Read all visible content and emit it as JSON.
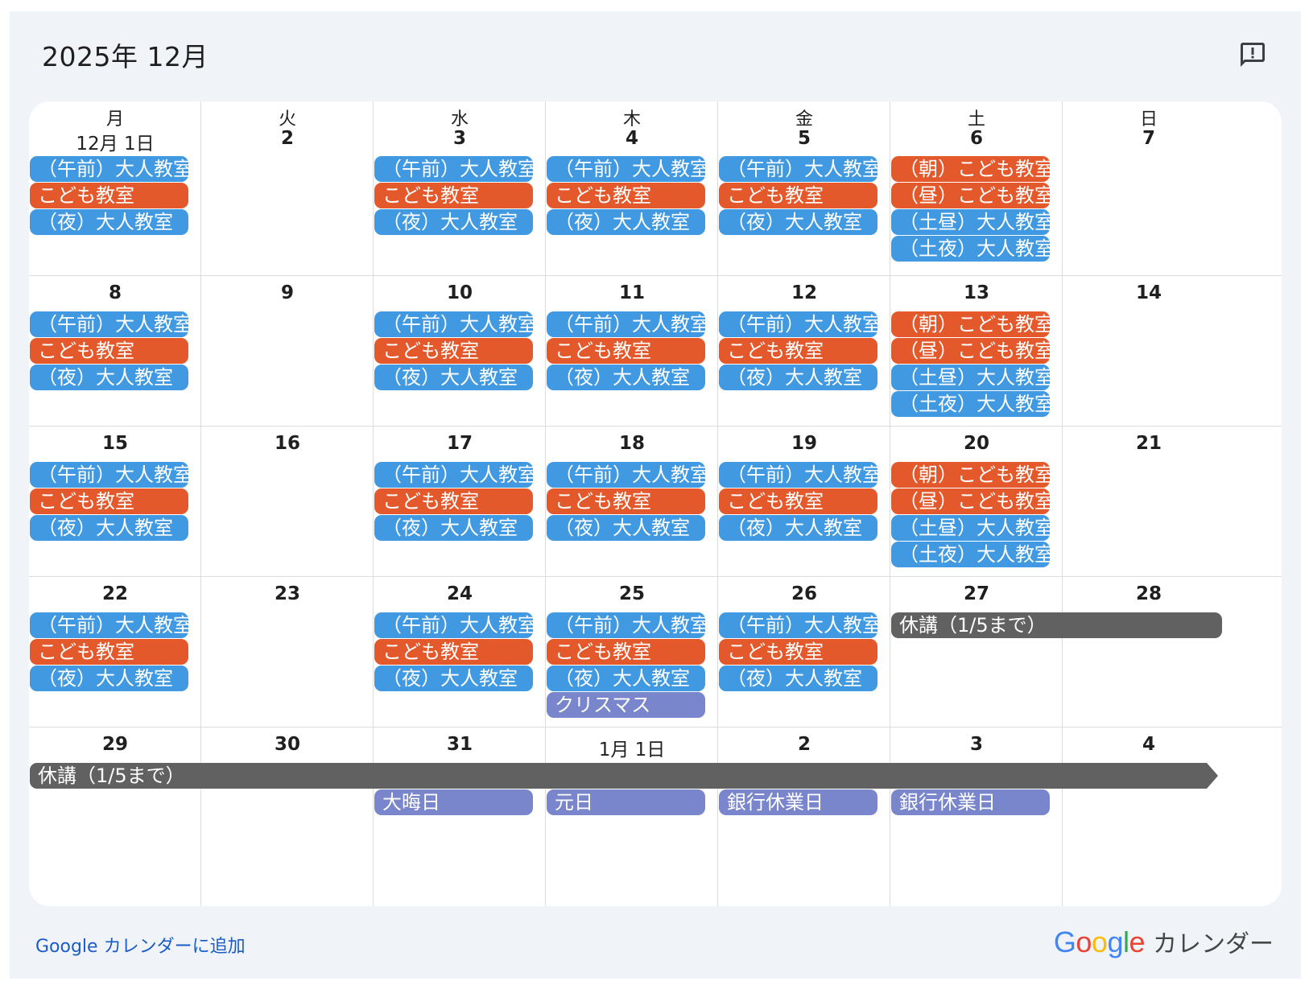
{
  "header": {
    "title": "2025年 12月"
  },
  "weekdays": [
    "月",
    "火",
    "水",
    "木",
    "金",
    "土",
    "日"
  ],
  "colors": {
    "blue": "#4199e1",
    "orange": "#e3592b",
    "purple": "#7986cb",
    "gray": "#616161",
    "link": "#1a5bc7"
  },
  "weeks": [
    {
      "days": [
        "12月 1日",
        "2",
        "3",
        "4",
        "5",
        "6",
        "7"
      ],
      "events": [
        {
          "col": 0,
          "slot": 0,
          "label": "（午前）大人教室",
          "color": "blue"
        },
        {
          "col": 0,
          "slot": 1,
          "label": "こども教室",
          "color": "orange"
        },
        {
          "col": 0,
          "slot": 2,
          "label": "（夜）大人教室",
          "color": "blue"
        },
        {
          "col": 2,
          "slot": 0,
          "label": "（午前）大人教室",
          "color": "blue"
        },
        {
          "col": 2,
          "slot": 1,
          "label": "こども教室",
          "color": "orange"
        },
        {
          "col": 2,
          "slot": 2,
          "label": "（夜）大人教室",
          "color": "blue"
        },
        {
          "col": 3,
          "slot": 0,
          "label": "（午前）大人教室",
          "color": "blue"
        },
        {
          "col": 3,
          "slot": 1,
          "label": "こども教室",
          "color": "orange"
        },
        {
          "col": 3,
          "slot": 2,
          "label": "（夜）大人教室",
          "color": "blue"
        },
        {
          "col": 4,
          "slot": 0,
          "label": "（午前）大人教室",
          "color": "blue"
        },
        {
          "col": 4,
          "slot": 1,
          "label": "こども教室",
          "color": "orange"
        },
        {
          "col": 4,
          "slot": 2,
          "label": "（夜）大人教室",
          "color": "blue"
        },
        {
          "col": 5,
          "slot": 0,
          "label": "（朝）こども教室",
          "color": "orange"
        },
        {
          "col": 5,
          "slot": 1,
          "label": "（昼）こども教室",
          "color": "orange"
        },
        {
          "col": 5,
          "slot": 2,
          "label": "（土昼）大人教室",
          "color": "blue"
        },
        {
          "col": 5,
          "slot": 3,
          "label": "（土夜）大人教室",
          "color": "blue"
        }
      ]
    },
    {
      "days": [
        "8",
        "9",
        "10",
        "11",
        "12",
        "13",
        "14"
      ],
      "events": [
        {
          "col": 0,
          "slot": 0,
          "label": "（午前）大人教室",
          "color": "blue"
        },
        {
          "col": 0,
          "slot": 1,
          "label": "こども教室",
          "color": "orange"
        },
        {
          "col": 0,
          "slot": 2,
          "label": "（夜）大人教室",
          "color": "blue"
        },
        {
          "col": 2,
          "slot": 0,
          "label": "（午前）大人教室",
          "color": "blue"
        },
        {
          "col": 2,
          "slot": 1,
          "label": "こども教室",
          "color": "orange"
        },
        {
          "col": 2,
          "slot": 2,
          "label": "（夜）大人教室",
          "color": "blue"
        },
        {
          "col": 3,
          "slot": 0,
          "label": "（午前）大人教室",
          "color": "blue"
        },
        {
          "col": 3,
          "slot": 1,
          "label": "こども教室",
          "color": "orange"
        },
        {
          "col": 3,
          "slot": 2,
          "label": "（夜）大人教室",
          "color": "blue"
        },
        {
          "col": 4,
          "slot": 0,
          "label": "（午前）大人教室",
          "color": "blue"
        },
        {
          "col": 4,
          "slot": 1,
          "label": "こども教室",
          "color": "orange"
        },
        {
          "col": 4,
          "slot": 2,
          "label": "（夜）大人教室",
          "color": "blue"
        },
        {
          "col": 5,
          "slot": 0,
          "label": "（朝）こども教室",
          "color": "orange"
        },
        {
          "col": 5,
          "slot": 1,
          "label": "（昼）こども教室",
          "color": "orange"
        },
        {
          "col": 5,
          "slot": 2,
          "label": "（土昼）大人教室",
          "color": "blue"
        },
        {
          "col": 5,
          "slot": 3,
          "label": "（土夜）大人教室",
          "color": "blue"
        }
      ]
    },
    {
      "days": [
        "15",
        "16",
        "17",
        "18",
        "19",
        "20",
        "21"
      ],
      "events": [
        {
          "col": 0,
          "slot": 0,
          "label": "（午前）大人教室",
          "color": "blue"
        },
        {
          "col": 0,
          "slot": 1,
          "label": "こども教室",
          "color": "orange"
        },
        {
          "col": 0,
          "slot": 2,
          "label": "（夜）大人教室",
          "color": "blue"
        },
        {
          "col": 2,
          "slot": 0,
          "label": "（午前）大人教室",
          "color": "blue"
        },
        {
          "col": 2,
          "slot": 1,
          "label": "こども教室",
          "color": "orange"
        },
        {
          "col": 2,
          "slot": 2,
          "label": "（夜）大人教室",
          "color": "blue"
        },
        {
          "col": 3,
          "slot": 0,
          "label": "（午前）大人教室",
          "color": "blue"
        },
        {
          "col": 3,
          "slot": 1,
          "label": "こども教室",
          "color": "orange"
        },
        {
          "col": 3,
          "slot": 2,
          "label": "（夜）大人教室",
          "color": "blue"
        },
        {
          "col": 4,
          "slot": 0,
          "label": "（午前）大人教室",
          "color": "blue"
        },
        {
          "col": 4,
          "slot": 1,
          "label": "こども教室",
          "color": "orange"
        },
        {
          "col": 4,
          "slot": 2,
          "label": "（夜）大人教室",
          "color": "blue"
        },
        {
          "col": 5,
          "slot": 0,
          "label": "（朝）こども教室",
          "color": "orange"
        },
        {
          "col": 5,
          "slot": 1,
          "label": "（昼）こども教室",
          "color": "orange"
        },
        {
          "col": 5,
          "slot": 2,
          "label": "（土昼）大人教室",
          "color": "blue"
        },
        {
          "col": 5,
          "slot": 3,
          "label": "（土夜）大人教室",
          "color": "blue"
        }
      ]
    },
    {
      "days": [
        "22",
        "23",
        "24",
        "25",
        "26",
        "27",
        "28"
      ],
      "events": [
        {
          "col": 0,
          "slot": 0,
          "label": "（午前）大人教室",
          "color": "blue"
        },
        {
          "col": 0,
          "slot": 1,
          "label": "こども教室",
          "color": "orange"
        },
        {
          "col": 0,
          "slot": 2,
          "label": "（夜）大人教室",
          "color": "blue"
        },
        {
          "col": 2,
          "slot": 0,
          "label": "（午前）大人教室",
          "color": "blue"
        },
        {
          "col": 2,
          "slot": 1,
          "label": "こども教室",
          "color": "orange"
        },
        {
          "col": 2,
          "slot": 2,
          "label": "（夜）大人教室",
          "color": "blue"
        },
        {
          "col": 3,
          "slot": 0,
          "label": "（午前）大人教室",
          "color": "blue"
        },
        {
          "col": 3,
          "slot": 1,
          "label": "こども教室",
          "color": "orange"
        },
        {
          "col": 3,
          "slot": 2,
          "label": "（夜）大人教室",
          "color": "blue"
        },
        {
          "col": 3,
          "slot": 3,
          "label": "クリスマス",
          "color": "purple"
        },
        {
          "col": 4,
          "slot": 0,
          "label": "（午前）大人教室",
          "color": "blue"
        },
        {
          "col": 4,
          "slot": 1,
          "label": "こども教室",
          "color": "orange"
        },
        {
          "col": 4,
          "slot": 2,
          "label": "（夜）大人教室",
          "color": "blue"
        },
        {
          "col": 5,
          "slot": 0,
          "span": 2,
          "label": "休講（1/5まで）",
          "color": "gray"
        }
      ]
    },
    {
      "days": [
        "29",
        "30",
        "31",
        "1月 1日",
        "2",
        "3",
        "4"
      ],
      "events": [
        {
          "col": 0,
          "slot": 0,
          "span": 7,
          "label": "休講（1/5まで）",
          "color": "gray",
          "continues": true
        },
        {
          "col": 2,
          "slot": 1,
          "label": "大晦日",
          "color": "purple"
        },
        {
          "col": 3,
          "slot": 1,
          "label": "元日",
          "color": "purple"
        },
        {
          "col": 4,
          "slot": 1,
          "label": "銀行休業日",
          "color": "purple"
        },
        {
          "col": 5,
          "slot": 1,
          "label": "銀行休業日",
          "color": "purple"
        }
      ]
    }
  ],
  "footer": {
    "add_link": "Google カレンダーに追加",
    "brand_logo": "Google",
    "brand_text": "カレンダー"
  },
  "icons": {
    "feedback": "feedback-icon"
  }
}
